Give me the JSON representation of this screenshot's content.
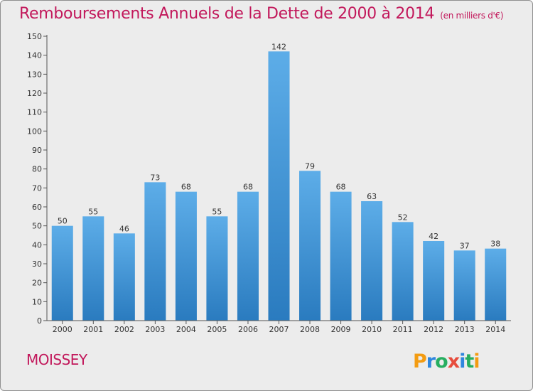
{
  "chart_data": {
    "type": "bar",
    "title": "Remboursements Annuels de la Dette de 2000 à 2014",
    "subtitle": "(en milliers d'€)",
    "categories": [
      "2000",
      "2001",
      "2002",
      "2003",
      "2004",
      "2005",
      "2006",
      "2007",
      "2008",
      "2009",
      "2010",
      "2011",
      "2012",
      "2013",
      "2014"
    ],
    "values": [
      50,
      55,
      46,
      73,
      68,
      55,
      68,
      142,
      79,
      68,
      63,
      52,
      42,
      37,
      38
    ],
    "ylim": [
      0,
      150
    ],
    "ytick_step": 10,
    "grid": false,
    "bar_color_light": "#5dade8",
    "bar_color_dark": "#2a7bbf"
  },
  "city": "MOISSEY",
  "logo": "Proxiti",
  "colors": {
    "title": "#c2185b",
    "background": "#ececec"
  }
}
